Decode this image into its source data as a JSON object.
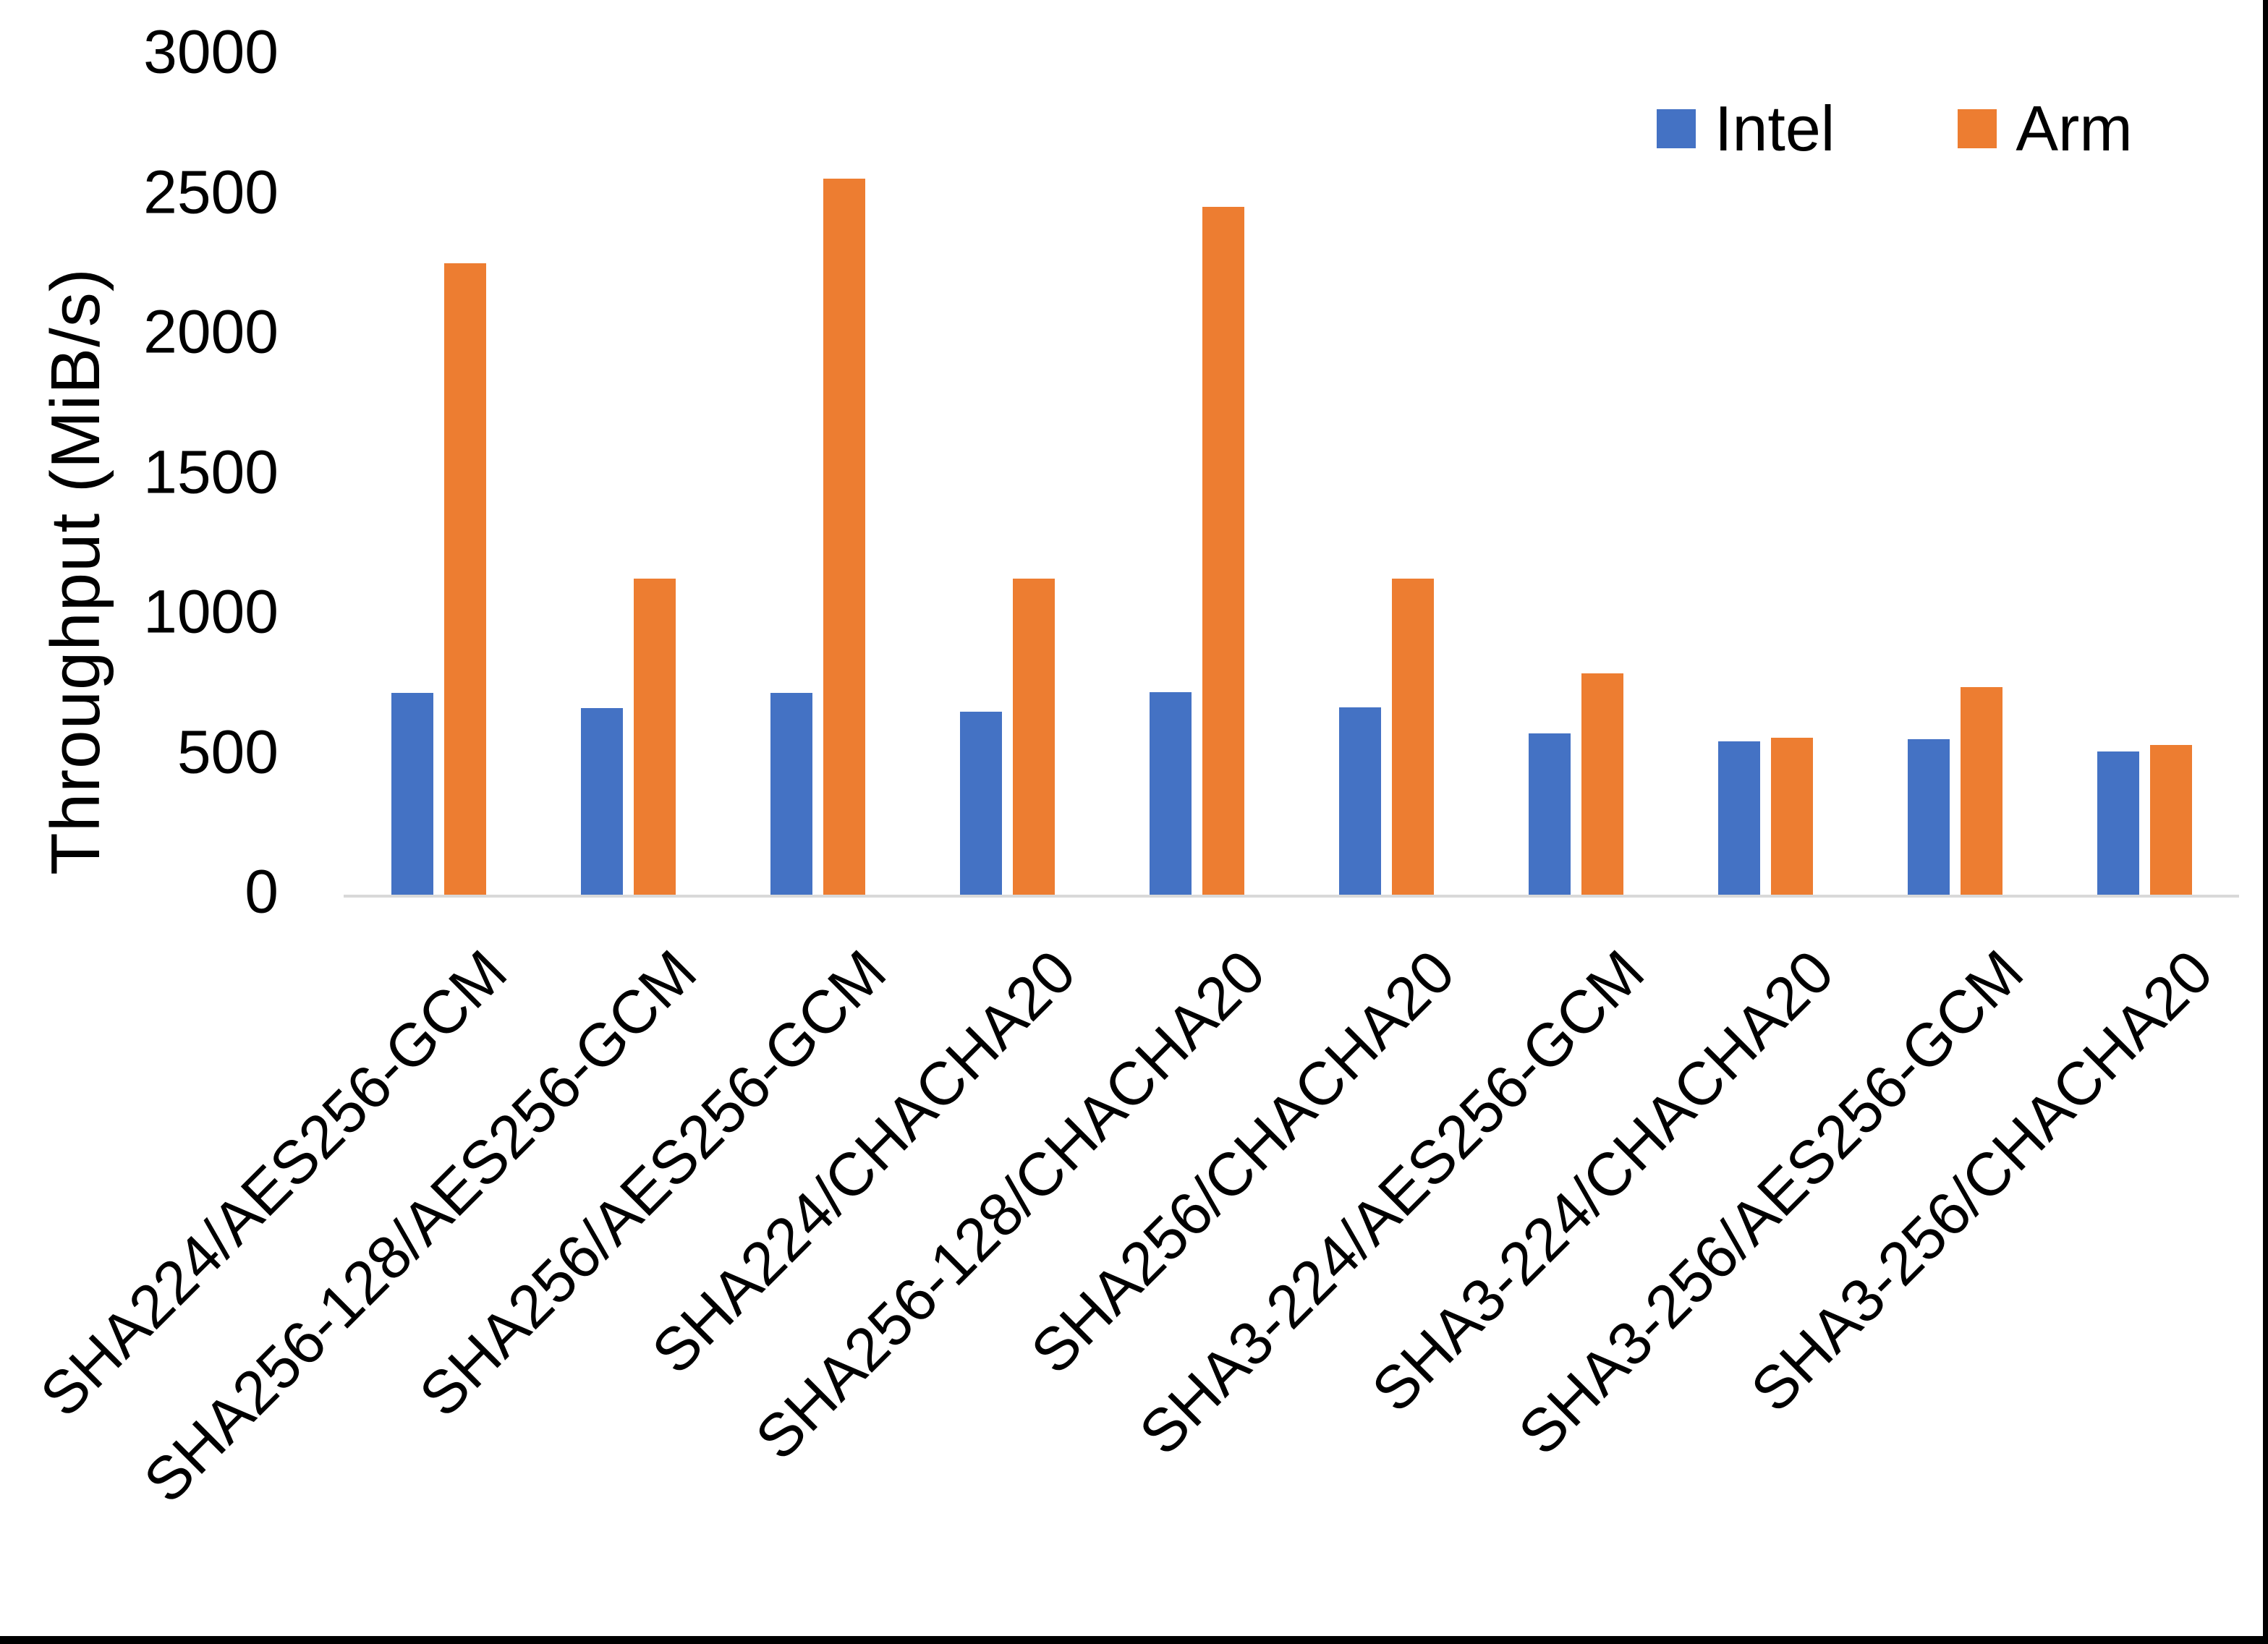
{
  "figure": {
    "background": "#ffffff",
    "frame": {
      "right_edge_color": "#000000",
      "bottom_edge_color": "#000000"
    }
  },
  "chart_data": {
    "type": "bar",
    "title": "",
    "xlabel": "",
    "ylabel": "Throughput (MiB/s)",
    "ylim": [
      0,
      3000
    ],
    "yticks": [
      0,
      500,
      1000,
      1500,
      2000,
      2500,
      3000
    ],
    "grid": false,
    "axis_line_color": "#d9d9d9",
    "legend_position": "top-right",
    "categories": [
      "SHA224/AES256-GCM",
      "SHA256-128/AES256-GCM",
      "SHA256/AES256-GCM",
      "SHA224/CHACHA20",
      "SHA256-128/CHACHA20",
      "SHA256/CHACHA20",
      "SHA3-224/AES256-GCM",
      "SHA3-224/CHACHA20",
      "SHA3-256/AES256-GCM",
      "SHA3-256/CHACHA20"
    ],
    "series": [
      {
        "name": "Intel",
        "color": "#4472c4",
        "values": [
          722,
          666,
          722,
          655,
          724,
          670,
          575,
          548,
          556,
          512
        ]
      },
      {
        "name": "Arm",
        "color": "#ed7d31",
        "values": [
          2255,
          1128,
          2558,
          1128,
          2458,
          1128,
          790,
          560,
          742,
          534
        ]
      }
    ]
  }
}
